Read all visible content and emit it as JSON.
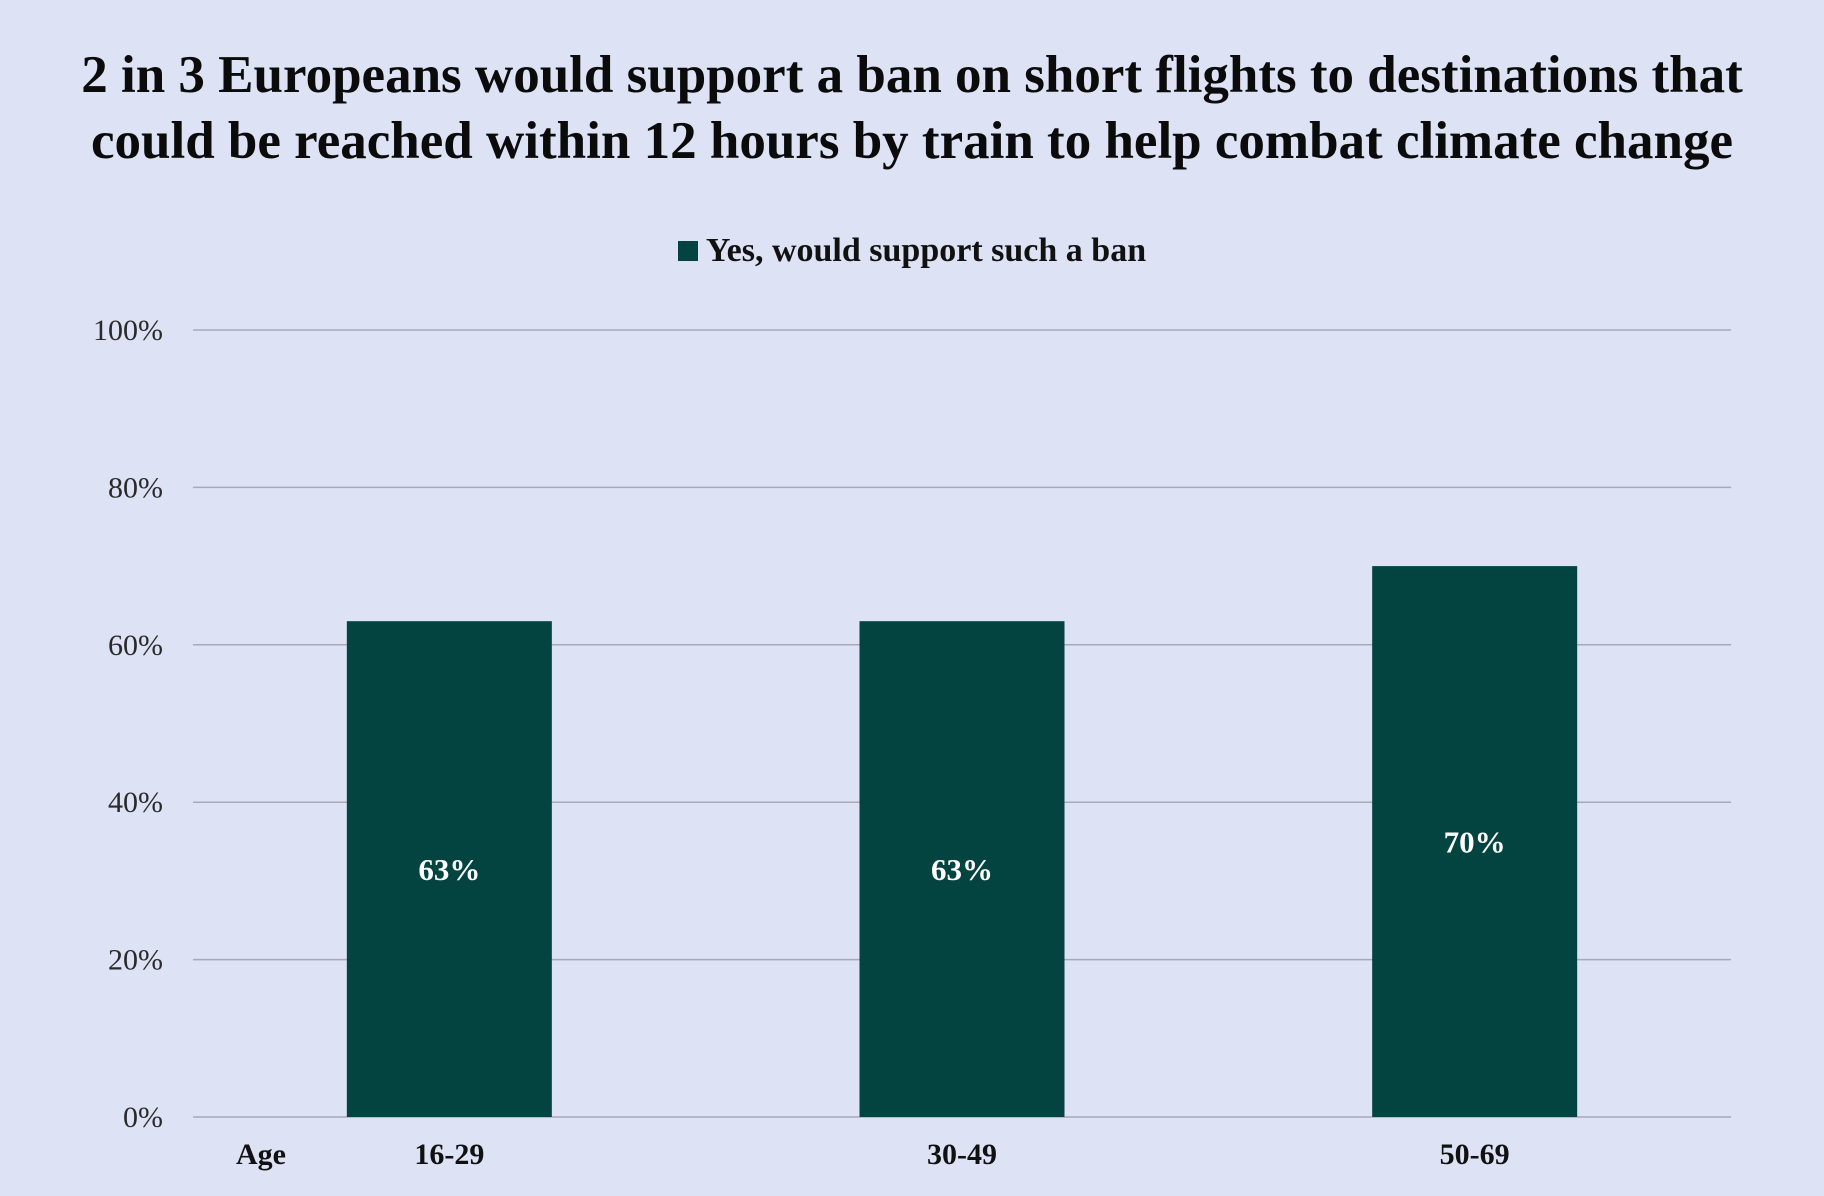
{
  "chart_data": {
    "type": "bar",
    "title_lines": [
      "2 in 3 Europeans would support a ban on short flights to destinations that",
      "could be reached within 12 hours by train to help combat climate change"
    ],
    "legend_position": "top",
    "x_axis_title": "Age",
    "categories": [
      "16-29",
      "30-49",
      "50-69"
    ],
    "series": [
      {
        "name": "Yes, would support such a ban",
        "values": [
          63,
          63,
          70
        ],
        "color": "#034441"
      }
    ],
    "data_labels": [
      "63%",
      "63%",
      "70%"
    ],
    "y_ticks": [
      {
        "value": 0,
        "label": "0%"
      },
      {
        "value": 20,
        "label": "20%"
      },
      {
        "value": 40,
        "label": "40%"
      },
      {
        "value": 60,
        "label": "60%"
      },
      {
        "value": 80,
        "label": "80%"
      },
      {
        "value": 100,
        "label": "100%"
      }
    ],
    "ylim": [
      0,
      100
    ],
    "grid": true,
    "colors": {
      "background": "#dde2f4",
      "gridline": "#a6a9b6",
      "bar": "#034441"
    }
  }
}
